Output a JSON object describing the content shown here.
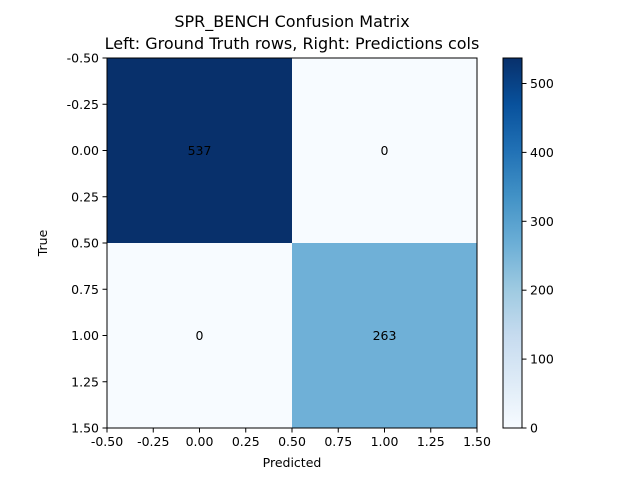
{
  "chart_data": {
    "type": "heatmap",
    "title": "SPR_BENCH Confusion Matrix",
    "subtitle": "Left: Ground Truth rows, Right: Predictions cols",
    "xlabel": "Predicted",
    "ylabel": "True",
    "xlim": [
      -0.5,
      1.5
    ],
    "ylim": [
      1.5,
      -0.5
    ],
    "x_ticks": [
      "-0.50",
      "-0.25",
      "0.00",
      "0.25",
      "0.50",
      "0.75",
      "1.00",
      "1.25",
      "1.50"
    ],
    "y_ticks": [
      "-0.50",
      "-0.25",
      "0.00",
      "0.25",
      "0.50",
      "0.75",
      "1.00",
      "1.25",
      "1.50"
    ],
    "matrix": [
      [
        537,
        0
      ],
      [
        0,
        263
      ]
    ],
    "cell_labels": [
      [
        "537",
        "0"
      ],
      [
        "0",
        "263"
      ]
    ],
    "colormap": "Blues",
    "colorbar": {
      "min": 0,
      "max": 537,
      "ticks": [
        "0",
        "100",
        "200",
        "300",
        "400",
        "500"
      ]
    },
    "colors": {
      "low": "#f7fbff",
      "high": "#08306b",
      "mid": "#6baed6"
    }
  }
}
